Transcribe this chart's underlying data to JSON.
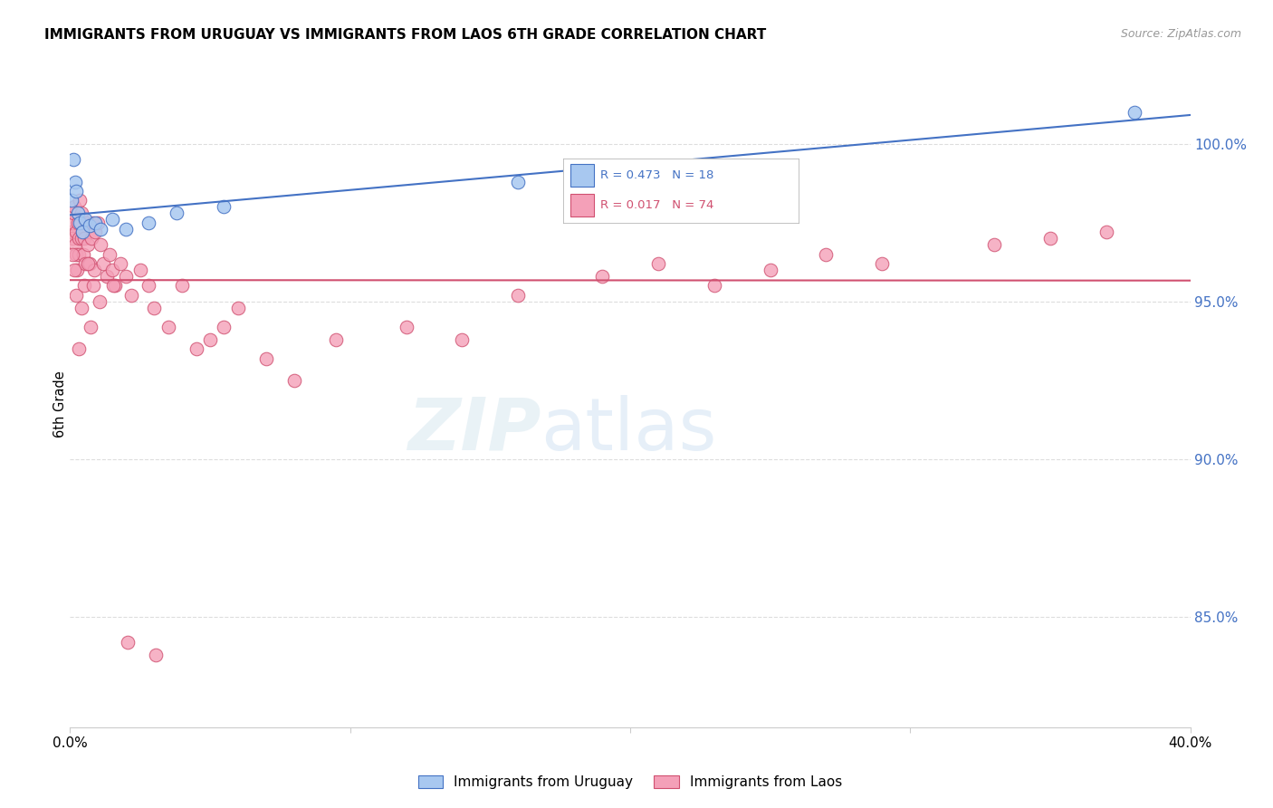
{
  "title": "IMMIGRANTS FROM URUGUAY VS IMMIGRANTS FROM LAOS 6TH GRADE CORRELATION CHART",
  "source": "Source: ZipAtlas.com",
  "ylabel": "6th Grade",
  "x_range": [
    0.0,
    40.0
  ],
  "y_range": [
    81.5,
    102.0
  ],
  "y_ticks": [
    85,
    90,
    95,
    100
  ],
  "y_tick_labels": [
    "85.0%",
    "90.0%",
    "95.0%",
    "100.0%"
  ],
  "color_uruguay": "#a8c8f0",
  "color_laos": "#f4a0b8",
  "line_color_uruguay": "#4472c4",
  "line_color_laos": "#d05070",
  "uruguay_x": [
    0.05,
    0.12,
    0.18,
    0.22,
    0.28,
    0.35,
    0.45,
    0.55,
    0.7,
    0.9,
    1.1,
    1.5,
    2.0,
    2.8,
    3.8,
    5.5,
    16.0,
    38.0
  ],
  "uruguay_y": [
    98.2,
    99.5,
    98.8,
    98.5,
    97.8,
    97.5,
    97.2,
    97.6,
    97.4,
    97.5,
    97.3,
    97.6,
    97.3,
    97.5,
    97.8,
    98.0,
    98.8,
    101.0
  ],
  "laos_x": [
    0.05,
    0.08,
    0.1,
    0.12,
    0.15,
    0.18,
    0.2,
    0.22,
    0.25,
    0.28,
    0.3,
    0.32,
    0.35,
    0.38,
    0.4,
    0.42,
    0.45,
    0.48,
    0.5,
    0.55,
    0.6,
    0.65,
    0.7,
    0.75,
    0.8,
    0.85,
    0.9,
    1.0,
    1.1,
    1.2,
    1.3,
    1.4,
    1.5,
    1.6,
    1.8,
    2.0,
    2.2,
    2.5,
    2.8,
    3.0,
    3.5,
    4.0,
    4.5,
    5.0,
    5.5,
    6.0,
    7.0,
    8.0,
    9.5,
    12.0,
    14.0,
    16.0,
    19.0,
    21.0,
    23.0,
    25.0,
    27.0,
    29.0,
    33.0,
    35.0,
    37.0,
    0.08,
    0.15,
    0.22,
    0.32,
    0.42,
    0.52,
    0.62,
    0.72,
    0.82,
    1.05,
    1.55,
    2.05,
    3.05
  ],
  "laos_y": [
    97.2,
    97.5,
    97.0,
    97.8,
    98.0,
    96.8,
    96.5,
    97.2,
    96.0,
    97.5,
    97.0,
    96.5,
    98.2,
    97.5,
    97.0,
    97.8,
    97.2,
    96.5,
    97.0,
    96.2,
    97.5,
    96.8,
    96.2,
    97.0,
    97.5,
    96.0,
    97.2,
    97.5,
    96.8,
    96.2,
    95.8,
    96.5,
    96.0,
    95.5,
    96.2,
    95.8,
    95.2,
    96.0,
    95.5,
    94.8,
    94.2,
    95.5,
    93.5,
    93.8,
    94.2,
    94.8,
    93.2,
    92.5,
    93.8,
    94.2,
    93.8,
    95.2,
    95.8,
    96.2,
    95.5,
    96.0,
    96.5,
    96.2,
    96.8,
    97.0,
    97.2,
    96.5,
    96.0,
    95.2,
    93.5,
    94.8,
    95.5,
    96.2,
    94.2,
    95.5,
    95.0,
    95.5,
    84.2,
    83.8
  ],
  "background_color": "#ffffff",
  "grid_color": "#dddddd",
  "watermark_zip": "ZIP",
  "watermark_atlas": "atlas"
}
